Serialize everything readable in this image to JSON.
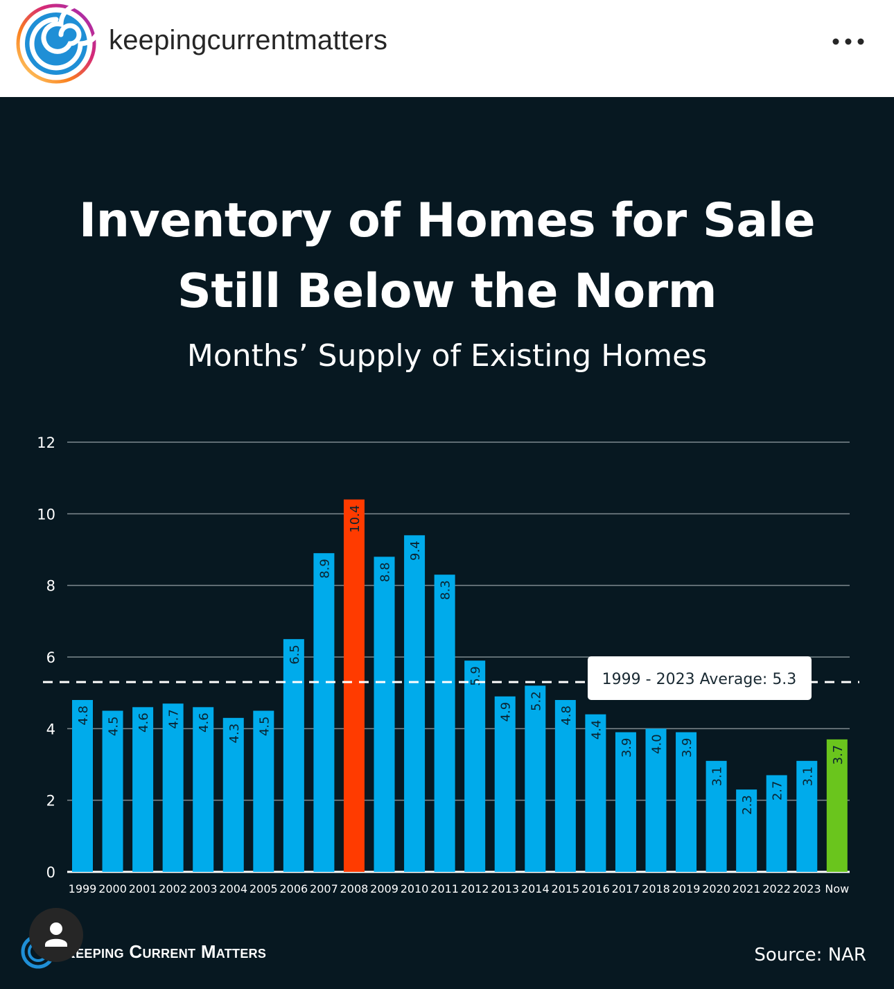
{
  "header": {
    "username": "keepingcurrentmatters",
    "more_icon": "more-horizontal-icon",
    "avatar_icon": "spiral-logo-icon"
  },
  "post": {
    "title_line1": "Inventory of Homes for Sale",
    "title_line2": "Still Below the Norm",
    "subtitle": "Months’ Supply of Existing Homes",
    "brand": "Keeping Current Matters",
    "source": "Source: NAR",
    "user_icon": "person-icon"
  },
  "colors": {
    "background": "#071821",
    "bar": "#00abeb",
    "highlight_max": "#ff3b00",
    "highlight_now": "#6ac51d",
    "gridline": "#7f8a90",
    "avg_line": "#ffffff"
  },
  "chart_data": {
    "type": "bar",
    "title": "Months’ Supply of Existing Homes",
    "categories": [
      "1999",
      "2000",
      "2001",
      "2002",
      "2003",
      "2004",
      "2005",
      "2006",
      "2007",
      "2008",
      "2009",
      "2010",
      "2011",
      "2012",
      "2013",
      "2014",
      "2015",
      "2016",
      "2017",
      "2018",
      "2019",
      "2020",
      "2021",
      "2022",
      "2023",
      "Now"
    ],
    "values": [
      4.8,
      4.5,
      4.6,
      4.7,
      4.6,
      4.3,
      4.5,
      6.5,
      8.9,
      10.4,
      8.8,
      9.4,
      8.3,
      5.9,
      4.9,
      5.2,
      4.8,
      4.4,
      3.9,
      4.0,
      3.9,
      3.1,
      2.3,
      2.7,
      3.1,
      3.7
    ],
    "value_labels": [
      "4.8",
      "4.5",
      "4.6",
      "4.7",
      "4.6",
      "4.3",
      "4.5",
      "6.5",
      "8.9",
      "10.4",
      "8.8",
      "9.4",
      "8.3",
      "5.9",
      "4.9",
      "5.2",
      "4.8",
      "4.4",
      "3.9",
      "4.0",
      "3.9",
      "3.1",
      "2.3",
      "2.7",
      "3.1",
      "3.7"
    ],
    "highlight": {
      "2008": "max",
      "Now": "now"
    },
    "ylim": [
      0,
      12
    ],
    "yticks": [
      "0",
      "2",
      "4",
      "6",
      "8",
      "10",
      "12"
    ],
    "grid": true,
    "average": {
      "value": 5.3,
      "label": "1999 - 2023 Average: 5.3"
    },
    "xlabel": "",
    "ylabel": ""
  }
}
